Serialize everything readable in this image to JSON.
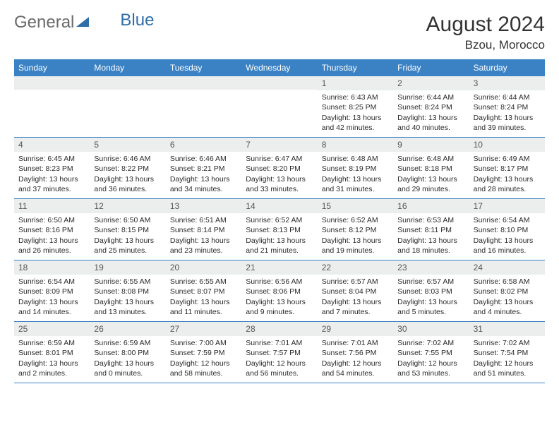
{
  "logo": {
    "text1": "General",
    "text2": "Blue"
  },
  "title": "August 2024",
  "location": "Bzou, Morocco",
  "colors": {
    "header_bg": "#3b82c4",
    "header_text": "#ffffff",
    "daynum_bg": "#eceded",
    "border": "#3b82c4",
    "logo_gray": "#6a6a6a",
    "logo_blue": "#2f6fa8"
  },
  "weekdays": [
    "Sunday",
    "Monday",
    "Tuesday",
    "Wednesday",
    "Thursday",
    "Friday",
    "Saturday"
  ],
  "weeks": [
    [
      null,
      null,
      null,
      null,
      {
        "n": "1",
        "sr": "6:43 AM",
        "ss": "8:25 PM",
        "dl": "13 hours and 42 minutes."
      },
      {
        "n": "2",
        "sr": "6:44 AM",
        "ss": "8:24 PM",
        "dl": "13 hours and 40 minutes."
      },
      {
        "n": "3",
        "sr": "6:44 AM",
        "ss": "8:24 PM",
        "dl": "13 hours and 39 minutes."
      }
    ],
    [
      {
        "n": "4",
        "sr": "6:45 AM",
        "ss": "8:23 PM",
        "dl": "13 hours and 37 minutes."
      },
      {
        "n": "5",
        "sr": "6:46 AM",
        "ss": "8:22 PM",
        "dl": "13 hours and 36 minutes."
      },
      {
        "n": "6",
        "sr": "6:46 AM",
        "ss": "8:21 PM",
        "dl": "13 hours and 34 minutes."
      },
      {
        "n": "7",
        "sr": "6:47 AM",
        "ss": "8:20 PM",
        "dl": "13 hours and 33 minutes."
      },
      {
        "n": "8",
        "sr": "6:48 AM",
        "ss": "8:19 PM",
        "dl": "13 hours and 31 minutes."
      },
      {
        "n": "9",
        "sr": "6:48 AM",
        "ss": "8:18 PM",
        "dl": "13 hours and 29 minutes."
      },
      {
        "n": "10",
        "sr": "6:49 AM",
        "ss": "8:17 PM",
        "dl": "13 hours and 28 minutes."
      }
    ],
    [
      {
        "n": "11",
        "sr": "6:50 AM",
        "ss": "8:16 PM",
        "dl": "13 hours and 26 minutes."
      },
      {
        "n": "12",
        "sr": "6:50 AM",
        "ss": "8:15 PM",
        "dl": "13 hours and 25 minutes."
      },
      {
        "n": "13",
        "sr": "6:51 AM",
        "ss": "8:14 PM",
        "dl": "13 hours and 23 minutes."
      },
      {
        "n": "14",
        "sr": "6:52 AM",
        "ss": "8:13 PM",
        "dl": "13 hours and 21 minutes."
      },
      {
        "n": "15",
        "sr": "6:52 AM",
        "ss": "8:12 PM",
        "dl": "13 hours and 19 minutes."
      },
      {
        "n": "16",
        "sr": "6:53 AM",
        "ss": "8:11 PM",
        "dl": "13 hours and 18 minutes."
      },
      {
        "n": "17",
        "sr": "6:54 AM",
        "ss": "8:10 PM",
        "dl": "13 hours and 16 minutes."
      }
    ],
    [
      {
        "n": "18",
        "sr": "6:54 AM",
        "ss": "8:09 PM",
        "dl": "13 hours and 14 minutes."
      },
      {
        "n": "19",
        "sr": "6:55 AM",
        "ss": "8:08 PM",
        "dl": "13 hours and 13 minutes."
      },
      {
        "n": "20",
        "sr": "6:55 AM",
        "ss": "8:07 PM",
        "dl": "13 hours and 11 minutes."
      },
      {
        "n": "21",
        "sr": "6:56 AM",
        "ss": "8:06 PM",
        "dl": "13 hours and 9 minutes."
      },
      {
        "n": "22",
        "sr": "6:57 AM",
        "ss": "8:04 PM",
        "dl": "13 hours and 7 minutes."
      },
      {
        "n": "23",
        "sr": "6:57 AM",
        "ss": "8:03 PM",
        "dl": "13 hours and 5 minutes."
      },
      {
        "n": "24",
        "sr": "6:58 AM",
        "ss": "8:02 PM",
        "dl": "13 hours and 4 minutes."
      }
    ],
    [
      {
        "n": "25",
        "sr": "6:59 AM",
        "ss": "8:01 PM",
        "dl": "13 hours and 2 minutes."
      },
      {
        "n": "26",
        "sr": "6:59 AM",
        "ss": "8:00 PM",
        "dl": "13 hours and 0 minutes."
      },
      {
        "n": "27",
        "sr": "7:00 AM",
        "ss": "7:59 PM",
        "dl": "12 hours and 58 minutes."
      },
      {
        "n": "28",
        "sr": "7:01 AM",
        "ss": "7:57 PM",
        "dl": "12 hours and 56 minutes."
      },
      {
        "n": "29",
        "sr": "7:01 AM",
        "ss": "7:56 PM",
        "dl": "12 hours and 54 minutes."
      },
      {
        "n": "30",
        "sr": "7:02 AM",
        "ss": "7:55 PM",
        "dl": "12 hours and 53 minutes."
      },
      {
        "n": "31",
        "sr": "7:02 AM",
        "ss": "7:54 PM",
        "dl": "12 hours and 51 minutes."
      }
    ]
  ],
  "labels": {
    "sunrise": "Sunrise:",
    "sunset": "Sunset:",
    "daylight": "Daylight:"
  }
}
